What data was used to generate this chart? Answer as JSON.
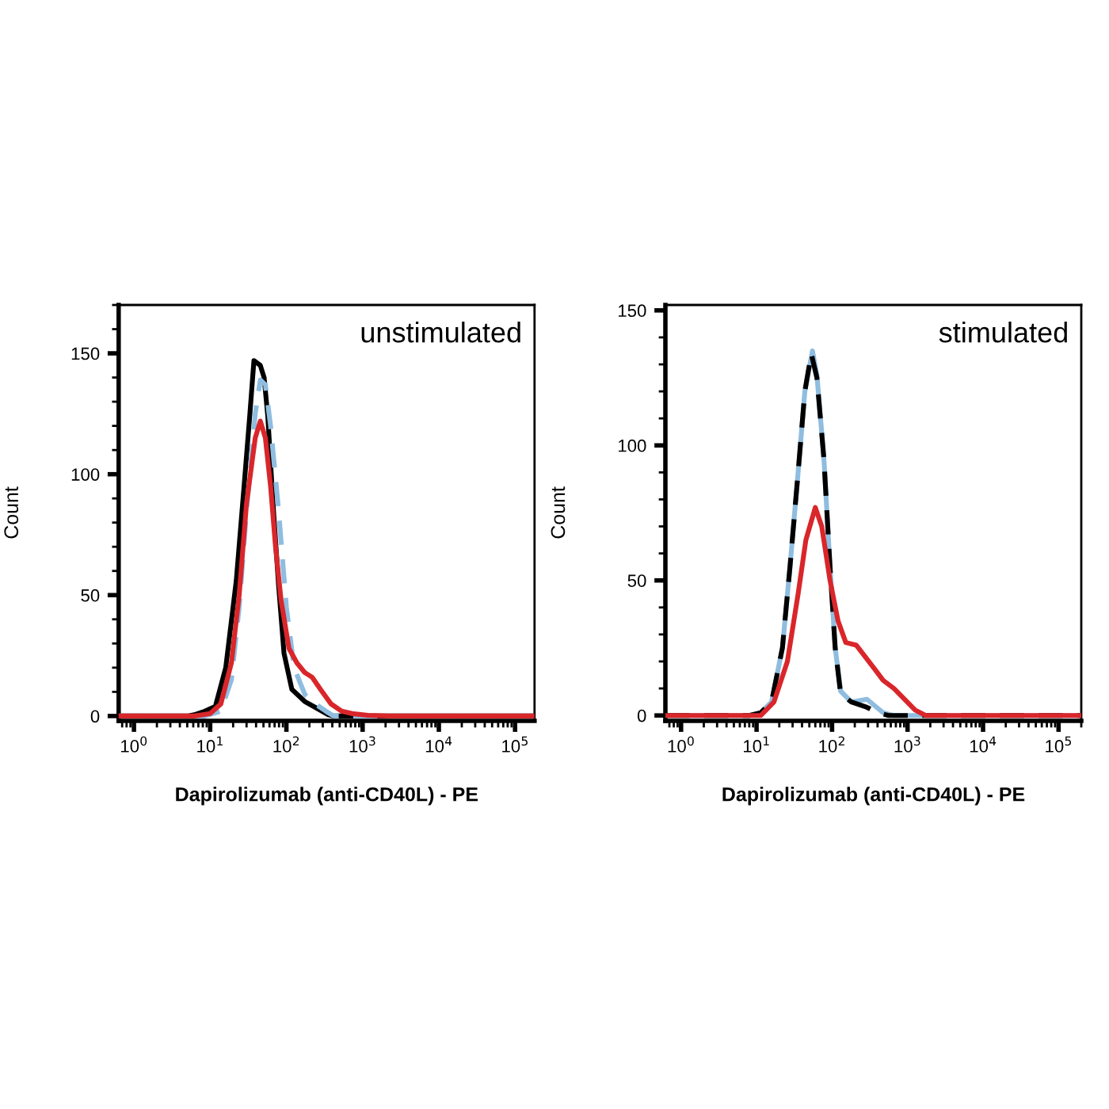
{
  "chart_data": [
    {
      "type": "line",
      "xlabel": "Dapirolizumab (anti-CD40L) - PE",
      "ylabel": "Count",
      "annotations": [
        "unstimulated"
      ],
      "log": "x",
      "grid": false,
      "marker": "none",
      "xlim": [
        0.63,
        180000
      ],
      "ylim": [
        -2,
        170
      ],
      "xticks": [
        {
          "value": 1,
          "label": "10$^{0}$"
        },
        {
          "value": 10,
          "label": "10$^{1}$"
        },
        {
          "value": 100,
          "label": "10$^{2}$"
        },
        {
          "value": 1000,
          "label": "10$^{3}$"
        },
        {
          "value": 10000,
          "label": "10$^{4}$"
        },
        {
          "value": 100000,
          "label": "10$^{5}$"
        }
      ],
      "yticks": [
        0,
        50,
        100,
        150
      ],
      "series": [
        {
          "color": "#000000",
          "line_style": "solid",
          "x": [
            0.63,
            5,
            6.2,
            8.5,
            11.7,
            16,
            22,
            28,
            33,
            37.5,
            45.5,
            51,
            57,
            67,
            79,
            93,
            118,
            174,
            258,
            355,
            417,
            180000
          ],
          "values": [
            0,
            0,
            0.5,
            2,
            4,
            20,
            56,
            96,
            124,
            147,
            145,
            140,
            124,
            87,
            54,
            26,
            11,
            6,
            3,
            0.5,
            0,
            0
          ]
        },
        {
          "color": "#8fbde0",
          "line_style": "dashed",
          "x": [
            0.63,
            8.5,
            13.8,
            19,
            24,
            30,
            39,
            45.5,
            53,
            62,
            79,
            100,
            126,
            174,
            240,
            330,
            417,
            180000
          ],
          "values": [
            0,
            0,
            2,
            15,
            45,
            85,
            125,
            139,
            137,
            120,
            85,
            45,
            20,
            9,
            5,
            2,
            0,
            0
          ]
        },
        {
          "color": "#d9262a",
          "line_style": "solid",
          "x": [
            0.63,
            6.2,
            10,
            13.8,
            19,
            24,
            30,
            39,
            45.5,
            53,
            62,
            72,
            85,
            108,
            137,
            174,
            218,
            280,
            385,
            530,
            725,
            1170,
            2180,
            180000
          ],
          "values": [
            0,
            0,
            1,
            5,
            22,
            50,
            88,
            115,
            122,
            115,
            95,
            70,
            48,
            28,
            22,
            18,
            16,
            11,
            5,
            2,
            1,
            0.3,
            0,
            0
          ]
        }
      ]
    },
    {
      "type": "line",
      "xlabel": "Dapirolizumab (anti-CD40L) - PE",
      "ylabel": "Count",
      "annotations": [
        "stimulated"
      ],
      "log": "x",
      "grid": false,
      "marker": "none",
      "xlim": [
        0.62,
        200000
      ],
      "ylim": [
        -2,
        152
      ],
      "xticks": [
        {
          "value": 1,
          "label": "10$^{0}$"
        },
        {
          "value": 10,
          "label": "10$^{1}$"
        },
        {
          "value": 100,
          "label": "10$^{2}$"
        },
        {
          "value": 1000,
          "label": "10$^{3}$"
        },
        {
          "value": 10000,
          "label": "10$^{4}$"
        },
        {
          "value": 100000,
          "label": "10$^{5}$"
        }
      ],
      "yticks": [
        0,
        50,
        100,
        150
      ],
      "series": [
        {
          "color": "#8fbde0",
          "line_style": "solid",
          "x": [
            0.62,
            8,
            11.4,
            15.8,
            22,
            27.7,
            35.5,
            43.6,
            55,
            63,
            78,
            94,
            110,
            130,
            180,
            290,
            475,
            650,
            200000
          ],
          "values": [
            0,
            0,
            1,
            5,
            25,
            55,
            90,
            120,
            135,
            126,
            95,
            55,
            25,
            9,
            5,
            6,
            1,
            0,
            0
          ]
        },
        {
          "color": "#000000",
          "line_style": "dashed",
          "x": [
            0.62,
            8,
            11.4,
            15.8,
            22,
            27.7,
            35.5,
            43.6,
            53,
            63,
            78,
            94,
            110,
            130,
            180,
            290,
            405,
            560,
            200000
          ],
          "values": [
            0,
            0,
            1,
            5,
            25,
            55,
            90,
            120,
            134,
            125,
            95,
            55,
            25,
            8,
            5,
            3,
            1,
            0,
            0
          ]
        },
        {
          "color": "#d9262a",
          "line_style": "solid",
          "x": [
            0.62,
            11.4,
            17,
            25.6,
            35.5,
            45,
            60,
            73,
            94,
            120,
            152,
            210,
            270,
            370,
            475,
            660,
            910,
            1260,
            1740,
            200000
          ],
          "values": [
            0,
            0,
            5,
            20,
            45,
            65,
            77,
            70,
            50,
            35,
            27,
            26,
            22,
            17,
            13,
            10,
            6,
            2,
            0,
            0
          ]
        }
      ]
    }
  ]
}
